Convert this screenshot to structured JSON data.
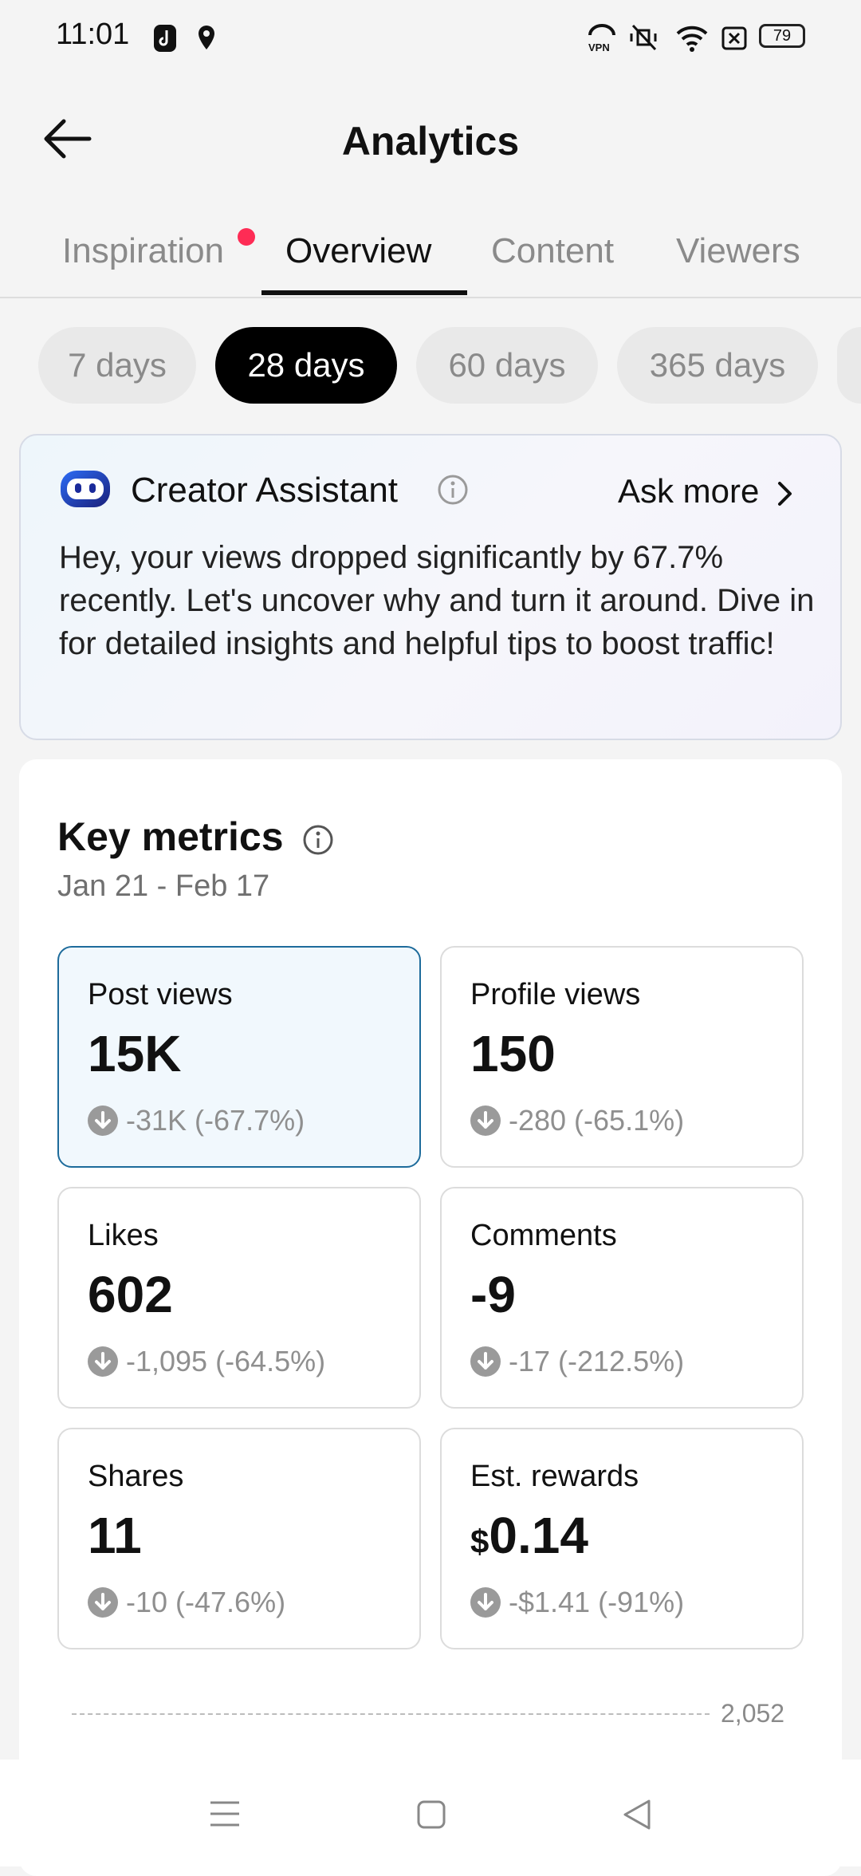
{
  "status_bar": {
    "time": "11:01",
    "battery": "79"
  },
  "header": {
    "title": "Analytics"
  },
  "tabs": [
    {
      "label": "Inspiration",
      "has_dot": true
    },
    {
      "label": "Overview",
      "active": true
    },
    {
      "label": "Content"
    },
    {
      "label": "Viewers"
    }
  ],
  "ranges": [
    {
      "label": "7 days"
    },
    {
      "label": "28 days",
      "active": true
    },
    {
      "label": "60 days"
    },
    {
      "label": "365 days"
    }
  ],
  "assistant": {
    "title": "Creator Assistant",
    "ask_more": "Ask more",
    "message": "Hey, your views dropped significantly by 67.7% recently. Let's uncover why and turn it around. Dive in for detailed insights and helpful tips to boost traffic!"
  },
  "key_metrics": {
    "title": "Key metrics",
    "date_range": "Jan 21 - Feb 17",
    "cards": [
      {
        "label": "Post views",
        "value": "15K",
        "change": "-31K (-67.7%)",
        "selected": true
      },
      {
        "label": "Profile views",
        "value": "150",
        "change": "-280 (-65.1%)"
      },
      {
        "label": "Likes",
        "value": "602",
        "change": "-1,095 (-64.5%)"
      },
      {
        "label": "Comments",
        "value": "-9",
        "change": "-17 (-212.5%)"
      },
      {
        "label": "Shares",
        "value": "11",
        "change": "-10 (-47.6%)"
      },
      {
        "label": "Est. rewards",
        "currency": "$",
        "value": "0.14",
        "change": "-$1.41 (-91%)"
      }
    ],
    "chart_max_label": "2,052"
  },
  "colors": {
    "accent_red": "#fe2c55",
    "selected_border": "#1d6b9b",
    "selected_bg": "#f1f8fd"
  }
}
